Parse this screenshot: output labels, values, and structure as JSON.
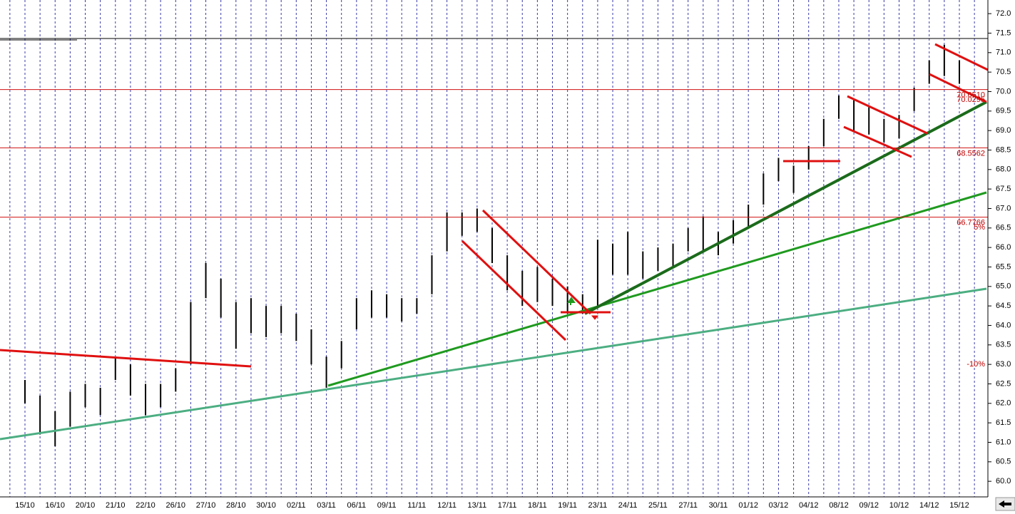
{
  "chart_data": {
    "type": "hlbar",
    "color": "#000000",
    "categories": [
      "15/10",
      null,
      "16/10",
      null,
      "20/10",
      null,
      "21/10",
      null,
      "22/10",
      null,
      "26/10",
      null,
      "27/10",
      null,
      "28/10",
      null,
      "30/10",
      null,
      "02/11",
      null,
      "03/11",
      null,
      "06/11",
      null,
      "09/11",
      null,
      "11/11",
      null,
      "12/11",
      null,
      "13/11",
      null,
      "17/11",
      null,
      "18/11",
      null,
      "19/11",
      null,
      "23/11",
      null,
      "24/11",
      null,
      "25/11",
      null,
      "27/11",
      null,
      "30/11",
      null,
      "01/12",
      null,
      "03/12",
      null,
      "04/12",
      null,
      "08/12",
      null,
      "09/12",
      null,
      "10/12",
      null,
      "14/12",
      null,
      "15/12"
    ],
    "high": [
      62.6,
      62.2,
      61.8,
      62.3,
      62.5,
      62.4,
      63.2,
      63.0,
      62.5,
      62.5,
      62.9,
      64.6,
      65.6,
      65.2,
      64.6,
      64.7,
      64.5,
      64.5,
      64.3,
      63.9,
      63.2,
      63.6,
      64.7,
      64.9,
      64.8,
      64.7,
      64.7,
      65.8,
      66.9,
      66.9,
      67.0,
      66.5,
      65.8,
      65.4,
      65.5,
      65.2,
      65.0,
      64.8,
      66.2,
      66.1,
      66.4,
      65.9,
      66.0,
      66.1,
      66.5,
      66.8,
      66.4,
      66.7,
      67.1,
      67.9,
      68.3,
      68.1,
      68.6,
      69.3,
      69.9,
      69.8,
      69.6,
      69.3,
      69.4,
      70.1,
      70.8,
      71.2,
      70.8
    ],
    "low": [
      62.0,
      61.2,
      60.9,
      61.4,
      61.9,
      61.7,
      62.6,
      62.2,
      61.7,
      61.9,
      62.3,
      63.0,
      64.7,
      64.2,
      63.4,
      63.8,
      63.7,
      63.8,
      63.6,
      63.0,
      62.4,
      62.9,
      63.9,
      64.2,
      64.2,
      64.1,
      64.3,
      64.8,
      65.9,
      66.3,
      66.4,
      65.6,
      64.9,
      64.5,
      64.6,
      64.5,
      64.3,
      64.3,
      64.5,
      65.3,
      65.3,
      65.2,
      65.4,
      65.5,
      65.9,
      65.9,
      65.8,
      66.1,
      66.5,
      67.1,
      67.7,
      67.4,
      68.0,
      68.6,
      69.3,
      69.0,
      68.9,
      68.7,
      68.8,
      69.5,
      70.2,
      70.4,
      70.2
    ],
    "ylim": [
      59.6,
      72.35
    ],
    "yticks": [
      {
        "value": 60,
        "label": "60.0"
      },
      60.5,
      {
        "value": 61,
        "label": "61.0"
      },
      61.5,
      {
        "value": 62,
        "label": "62.0"
      },
      62.5,
      {
        "value": 63,
        "label": "63.0"
      },
      63.5,
      {
        "value": 64,
        "label": "64.0"
      },
      64.5,
      {
        "value": 65,
        "label": "65.0"
      },
      65.5,
      {
        "value": 66,
        "label": "66.0"
      },
      66.5,
      {
        "value": 67,
        "label": "67.0"
      },
      67.5,
      {
        "value": 68,
        "label": "68.0"
      },
      68.5,
      {
        "value": 69,
        "label": "69.0"
      },
      69.5,
      {
        "value": 70,
        "label": "70.0"
      },
      70.5,
      {
        "value": 71,
        "label": "71.0"
      },
      71.5,
      {
        "value": 72,
        "label": "72.0"
      }
    ],
    "levels": [
      {
        "value": 70.051,
        "label": "70.0510"
      },
      {
        "value": 68.5562,
        "label": "68.5562"
      },
      {
        "value": 66.7766,
        "label": "66.7766"
      }
    ],
    "annotations": [
      "70.0295",
      "5%",
      "-10%"
    ]
  }
}
